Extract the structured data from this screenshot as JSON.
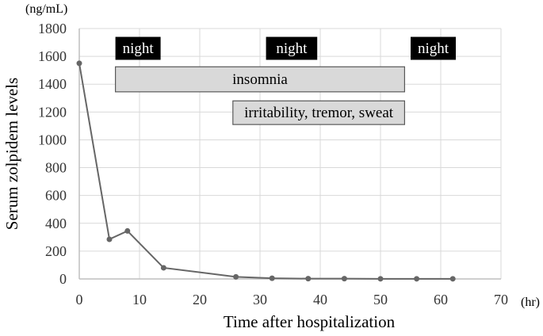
{
  "chart_data": {
    "type": "line",
    "title": "",
    "xlabel": "Time after hospitalization",
    "ylabel": "Serum zolpidem levels",
    "x_unit": "(hr)",
    "y_unit": "(ng/mL)",
    "xlim": [
      0,
      70
    ],
    "ylim": [
      0,
      1800
    ],
    "x_ticks": [
      0,
      10,
      20,
      30,
      40,
      50,
      60,
      70
    ],
    "y_ticks": [
      0,
      200,
      400,
      600,
      800,
      1000,
      1200,
      1400,
      1600,
      1800
    ],
    "grid": true,
    "series": [
      {
        "color": "#666666",
        "x": [
          0,
          5,
          8,
          14,
          26,
          32,
          38,
          44,
          50,
          56,
          62
        ],
        "y": [
          1550,
          285,
          345,
          80,
          15,
          5,
          2,
          2,
          1,
          1,
          1
        ]
      }
    ],
    "annotations": [
      {
        "text": "night",
        "x_start": 6,
        "x_end": 13.5,
        "y_start": 1575,
        "y_end": 1740,
        "style": "black"
      },
      {
        "text": "night",
        "x_start": 31,
        "x_end": 39.5,
        "y_start": 1575,
        "y_end": 1740,
        "style": "black"
      },
      {
        "text": "night",
        "x_start": 55,
        "x_end": 62.5,
        "y_start": 1575,
        "y_end": 1740,
        "style": "black"
      },
      {
        "text": "insomnia",
        "x_start": 6,
        "x_end": 54,
        "y_start": 1345,
        "y_end": 1525,
        "style": "gray"
      },
      {
        "text": "irritability, tremor, sweat",
        "x_start": 25.5,
        "x_end": 54,
        "y_start": 1110,
        "y_end": 1280,
        "style": "gray"
      }
    ],
    "colors": {
      "line": "#666666",
      "grid": "#d9d9d9",
      "axis": "#bfbfbf",
      "night_fill": "#000000",
      "night_text": "#ffffff",
      "symptom_fill": "#d9d9d9",
      "symptom_stroke": "#595959",
      "symptom_text": "#000000"
    }
  }
}
